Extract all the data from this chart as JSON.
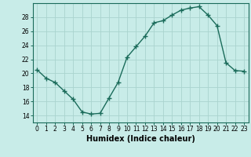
{
  "x": [
    0,
    1,
    2,
    3,
    4,
    5,
    6,
    7,
    8,
    9,
    10,
    11,
    12,
    13,
    14,
    15,
    16,
    17,
    18,
    19,
    20,
    21,
    22,
    23
  ],
  "y": [
    20.5,
    19.3,
    18.7,
    17.5,
    16.3,
    14.5,
    14.2,
    14.3,
    16.5,
    18.7,
    22.3,
    23.8,
    25.3,
    27.2,
    27.5,
    28.3,
    29.0,
    29.3,
    29.5,
    28.3,
    26.8,
    21.5,
    20.4,
    20.3
  ],
  "line_color": "#1a6b5a",
  "marker": "+",
  "marker_size": 4,
  "marker_lw": 1.0,
  "line_width": 1.0,
  "bg_color": "#c8ece8",
  "grid_color": "#aad4ce",
  "xlabel": "Humidex (Indice chaleur)",
  "xlim": [
    -0.5,
    23.5
  ],
  "ylim": [
    13.0,
    30.0
  ],
  "yticks": [
    14,
    16,
    18,
    20,
    22,
    24,
    26,
    28
  ],
  "xticks": [
    0,
    1,
    2,
    3,
    4,
    5,
    6,
    7,
    8,
    9,
    10,
    11,
    12,
    13,
    14,
    15,
    16,
    17,
    18,
    19,
    20,
    21,
    22,
    23
  ],
  "tick_fontsize": 5.5,
  "xlabel_fontsize": 7.0,
  "axis_color": "#1a6b5a",
  "spine_color": "#1a6b5a"
}
